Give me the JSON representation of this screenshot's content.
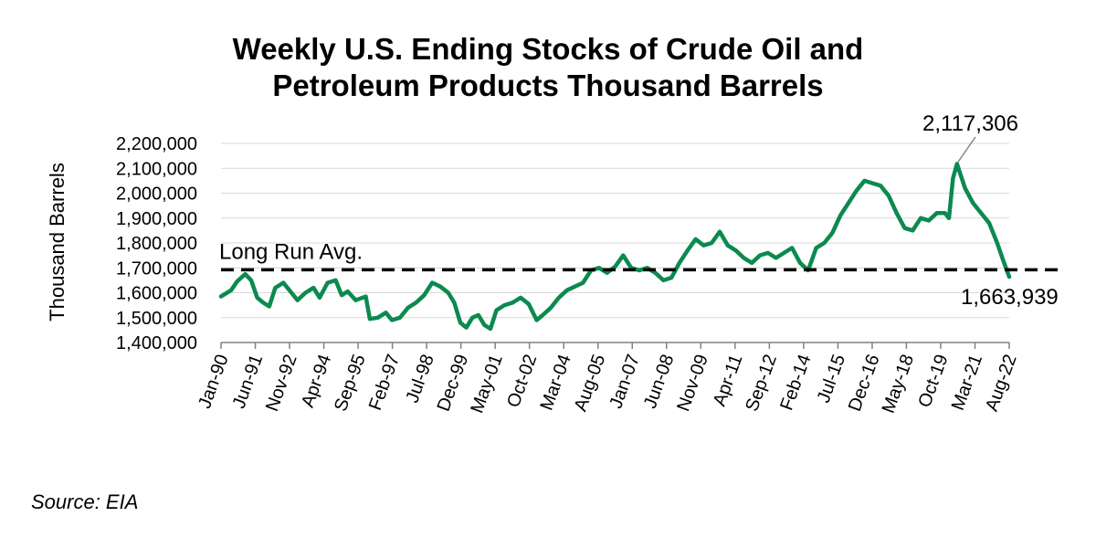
{
  "chart_data": {
    "type": "line",
    "title_line1": "Weekly U.S. Ending Stocks of Crude Oil and",
    "title_line2": "Petroleum Products Thousand Barrels",
    "ylabel": "Thousand Barrels",
    "xlabel": "",
    "ylim": [
      1400000,
      2200000
    ],
    "y_ticks": [
      {
        "value": 1400000,
        "label": "1,400,000"
      },
      {
        "value": 1500000,
        "label": "1,500,000"
      },
      {
        "value": 1600000,
        "label": "1,600,000"
      },
      {
        "value": 1700000,
        "label": "1,700,000"
      },
      {
        "value": 1800000,
        "label": "1,800,000"
      },
      {
        "value": 1900000,
        "label": "1,900,000"
      },
      {
        "value": 2000000,
        "label": "2,000,000"
      },
      {
        "value": 2100000,
        "label": "2,100,000"
      },
      {
        "value": 2200000,
        "label": "2,200,000"
      }
    ],
    "x_ticks": [
      "Jan-90",
      "Jun-91",
      "Nov-92",
      "Apr-94",
      "Sep-95",
      "Feb-97",
      "Jul-98",
      "Dec-99",
      "May-01",
      "Oct-02",
      "Mar-04",
      "Aug-05",
      "Jan-07",
      "Jun-08",
      "Nov-09",
      "Apr-11",
      "Sep-12",
      "Feb-14",
      "Jul-15",
      "Dec-16",
      "May-18",
      "Oct-19",
      "Mar-21",
      "Aug-22"
    ],
    "grid": true,
    "line_color": "#0b8a4f",
    "avg_color": "#000000",
    "series": [
      {
        "points": [
          [
            "1990-01",
            1585000
          ],
          [
            "1990-06",
            1610000
          ],
          [
            "1990-09",
            1645000
          ],
          [
            "1991-01",
            1675000
          ],
          [
            "1991-04",
            1650000
          ],
          [
            "1991-07",
            1580000
          ],
          [
            "1991-10",
            1560000
          ],
          [
            "1992-01",
            1545000
          ],
          [
            "1992-04",
            1620000
          ],
          [
            "1992-08",
            1640000
          ],
          [
            "1992-12",
            1600000
          ],
          [
            "1993-03",
            1570000
          ],
          [
            "1993-07",
            1600000
          ],
          [
            "1993-11",
            1620000
          ],
          [
            "1994-02",
            1580000
          ],
          [
            "1994-06",
            1640000
          ],
          [
            "1994-10",
            1650000
          ],
          [
            "1995-01",
            1590000
          ],
          [
            "1995-04",
            1605000
          ],
          [
            "1995-08",
            1570000
          ],
          [
            "1996-01",
            1585000
          ],
          [
            "1996-03",
            1495000
          ],
          [
            "1996-07",
            1500000
          ],
          [
            "1996-11",
            1520000
          ],
          [
            "1997-02",
            1490000
          ],
          [
            "1997-06",
            1500000
          ],
          [
            "1997-10",
            1540000
          ],
          [
            "1998-02",
            1560000
          ],
          [
            "1998-06",
            1590000
          ],
          [
            "1998-10",
            1640000
          ],
          [
            "1999-02",
            1625000
          ],
          [
            "1999-06",
            1600000
          ],
          [
            "1999-09",
            1560000
          ],
          [
            "1999-12",
            1480000
          ],
          [
            "2000-03",
            1460000
          ],
          [
            "2000-06",
            1500000
          ],
          [
            "2000-09",
            1510000
          ],
          [
            "2000-12",
            1470000
          ],
          [
            "2001-03",
            1455000
          ],
          [
            "2001-06",
            1530000
          ],
          [
            "2001-10",
            1550000
          ],
          [
            "2002-02",
            1560000
          ],
          [
            "2002-06",
            1580000
          ],
          [
            "2002-10",
            1555000
          ],
          [
            "2003-02",
            1490000
          ],
          [
            "2003-05",
            1510000
          ],
          [
            "2003-09",
            1540000
          ],
          [
            "2004-01",
            1580000
          ],
          [
            "2004-05",
            1610000
          ],
          [
            "2004-09",
            1625000
          ],
          [
            "2005-01",
            1640000
          ],
          [
            "2005-05",
            1690000
          ],
          [
            "2005-09",
            1700000
          ],
          [
            "2006-01",
            1680000
          ],
          [
            "2006-05",
            1705000
          ],
          [
            "2006-09",
            1750000
          ],
          [
            "2007-01",
            1700000
          ],
          [
            "2007-05",
            1690000
          ],
          [
            "2007-09",
            1700000
          ],
          [
            "2008-01",
            1680000
          ],
          [
            "2008-05",
            1650000
          ],
          [
            "2008-09",
            1660000
          ],
          [
            "2009-01",
            1720000
          ],
          [
            "2009-05",
            1770000
          ],
          [
            "2009-09",
            1815000
          ],
          [
            "2010-01",
            1790000
          ],
          [
            "2010-05",
            1800000
          ],
          [
            "2010-09",
            1845000
          ],
          [
            "2011-01",
            1790000
          ],
          [
            "2011-05",
            1770000
          ],
          [
            "2011-09",
            1740000
          ],
          [
            "2012-01",
            1720000
          ],
          [
            "2012-05",
            1750000
          ],
          [
            "2012-09",
            1760000
          ],
          [
            "2013-01",
            1740000
          ],
          [
            "2013-05",
            1760000
          ],
          [
            "2013-09",
            1780000
          ],
          [
            "2014-01",
            1720000
          ],
          [
            "2014-05",
            1690000
          ],
          [
            "2014-09",
            1780000
          ],
          [
            "2015-01",
            1800000
          ],
          [
            "2015-05",
            1840000
          ],
          [
            "2015-09",
            1910000
          ],
          [
            "2016-01",
            1960000
          ],
          [
            "2016-05",
            2010000
          ],
          [
            "2016-09",
            2050000
          ],
          [
            "2017-01",
            2040000
          ],
          [
            "2017-05",
            2030000
          ],
          [
            "2017-09",
            1990000
          ],
          [
            "2018-01",
            1920000
          ],
          [
            "2018-05",
            1860000
          ],
          [
            "2018-09",
            1850000
          ],
          [
            "2019-01",
            1900000
          ],
          [
            "2019-05",
            1890000
          ],
          [
            "2019-09",
            1920000
          ],
          [
            "2020-01",
            1920000
          ],
          [
            "2020-03",
            1900000
          ],
          [
            "2020-05",
            2060000
          ],
          [
            "2020-07",
            2117306
          ],
          [
            "2020-11",
            2020000
          ],
          [
            "2021-03",
            1960000
          ],
          [
            "2021-07",
            1920000
          ],
          [
            "2021-11",
            1880000
          ],
          [
            "2022-03",
            1800000
          ],
          [
            "2022-06",
            1730000
          ],
          [
            "2022-09",
            1663939
          ]
        ]
      }
    ],
    "long_run_avg": {
      "label": "Long Run Avg.",
      "value": 1692000
    },
    "annotations": {
      "peak": {
        "label": "2,117,306",
        "date": "2020-07",
        "value": 2117306
      },
      "last": {
        "label": "1,663,939",
        "date": "2022-09",
        "value": 1663939
      }
    }
  },
  "source": "Source: EIA"
}
